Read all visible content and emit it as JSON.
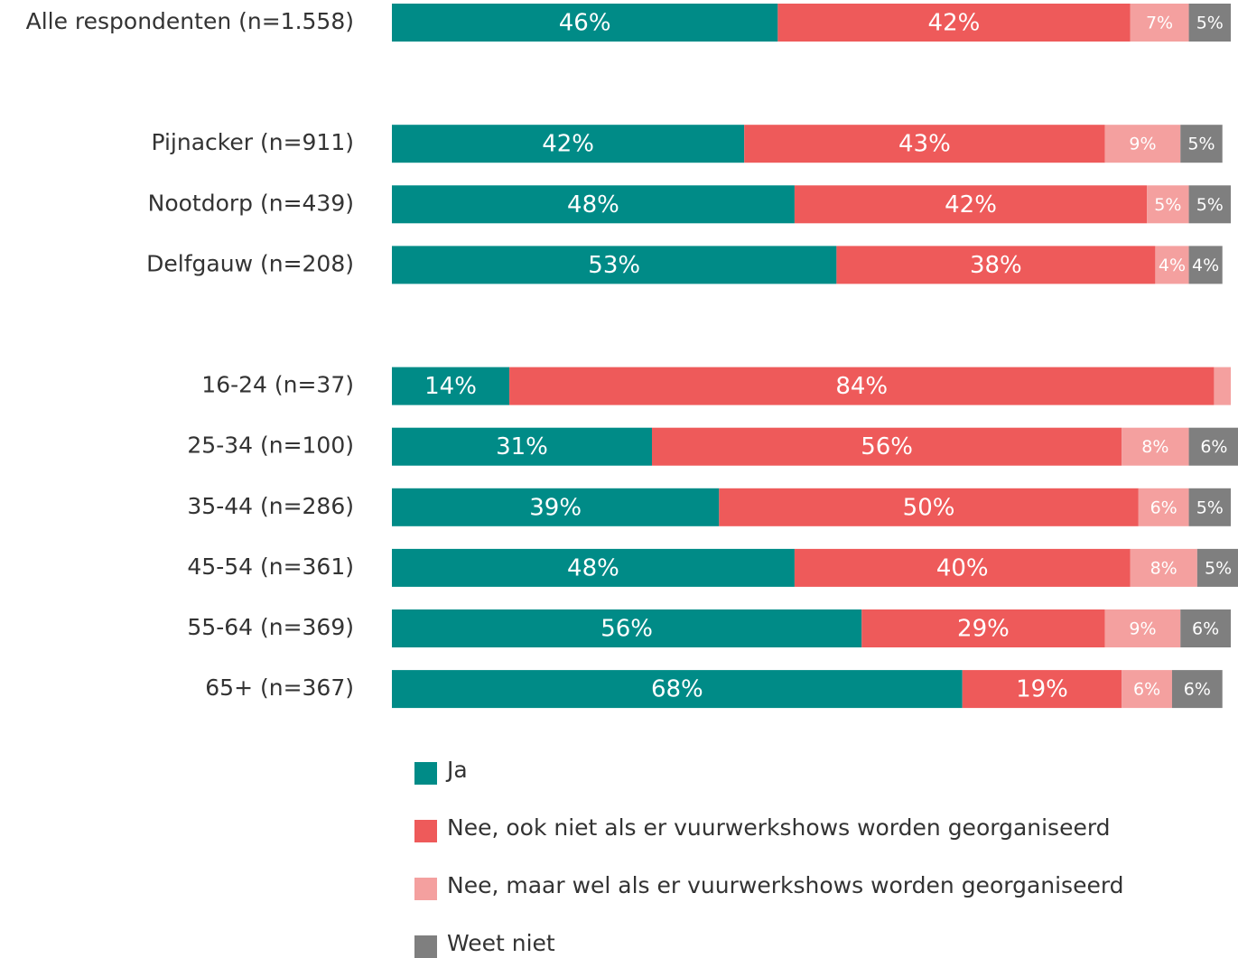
{
  "chart_data": {
    "type": "stacked_bar_horizontal",
    "categories": [
      "Alle respondenten (n=1.558)",
      null,
      "Pijnacker (n=911)",
      "Nootdorp (n=439)",
      "Delfgauw (n=208)",
      null,
      "16-24 (n=37)",
      "25-34 (n=100)",
      "35-44 (n=286)",
      "45-54 (n=361)",
      "55-64 (n=369)",
      "65+ (n=367)"
    ],
    "xlim": [
      0,
      100
    ],
    "series": [
      {
        "name": "Ja",
        "color": "#008b87",
        "values": [
          46,
          null,
          42,
          48,
          53,
          null,
          14,
          31,
          39,
          48,
          56,
          68
        ],
        "value_labels": [
          "46%",
          null,
          "42%",
          "48%",
          "53%",
          null,
          "14%",
          "31%",
          "39%",
          "48%",
          "56%",
          "68%"
        ]
      },
      {
        "name": "Nee, ook niet als er vuurwerkshows worden georganiseerd",
        "color": "#ee5a5a",
        "values": [
          42,
          null,
          43,
          42,
          38,
          null,
          84,
          56,
          50,
          40,
          29,
          19
        ],
        "value_labels": [
          "42%",
          null,
          "43%",
          "42%",
          "38%",
          null,
          "84%",
          "56%",
          "50%",
          "40%",
          "29%",
          "19%"
        ]
      },
      {
        "name": "Nee, maar wel als er vuurwerkshows worden georganiseerd",
        "color": "#f4a09f",
        "values": [
          7,
          null,
          9,
          5,
          4,
          null,
          2,
          8,
          6,
          8,
          9,
          6
        ],
        "value_labels": [
          "7%",
          null,
          "9%",
          "5%",
          "4%",
          null,
          null,
          "8%",
          "6%",
          "8%",
          "9%",
          "6%"
        ]
      },
      {
        "name": "Weet niet",
        "color": "#7f7f7f",
        "values": [
          5,
          null,
          5,
          5,
          4,
          null,
          null,
          6,
          5,
          5,
          6,
          6
        ],
        "value_labels": [
          "5%",
          null,
          "5%",
          "5%",
          "4%",
          null,
          null,
          "6%",
          "5%",
          "5%",
          "6%",
          "6%"
        ]
      }
    ]
  }
}
